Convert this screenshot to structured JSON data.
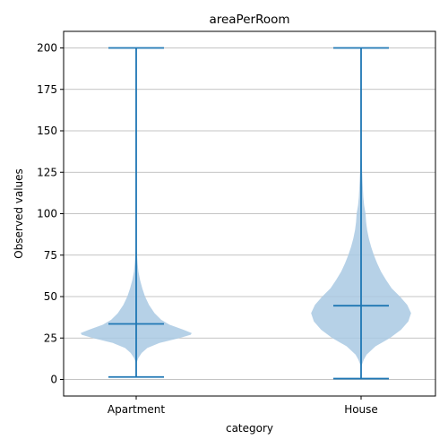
{
  "chart_data": {
    "type": "violin",
    "title": "areaPerRoom",
    "xlabel": "category",
    "ylabel": "Observed values",
    "ylim": [
      -10,
      210
    ],
    "yticks": [
      0,
      25,
      50,
      75,
      100,
      125,
      150,
      175,
      200
    ],
    "grid": "horizontal",
    "colors": {
      "body": "#a9c9e3",
      "line": "#1f77b4"
    },
    "categories": [
      "Apartment",
      "House"
    ],
    "violins": [
      {
        "name": "Apartment",
        "min": 1.5,
        "max": 200,
        "median": 33.5,
        "density": [
          [
            10,
            0.005
          ],
          [
            13,
            0.04
          ],
          [
            16,
            0.1
          ],
          [
            19,
            0.2
          ],
          [
            22,
            0.42
          ],
          [
            25,
            0.78
          ],
          [
            27,
            0.98
          ],
          [
            28,
            1.0
          ],
          [
            30,
            0.85
          ],
          [
            33,
            0.6
          ],
          [
            36,
            0.45
          ],
          [
            40,
            0.33
          ],
          [
            45,
            0.23
          ],
          [
            50,
            0.16
          ],
          [
            55,
            0.11
          ],
          [
            60,
            0.07
          ],
          [
            65,
            0.04
          ],
          [
            70,
            0.025
          ],
          [
            75,
            0.015
          ],
          [
            80,
            0.007
          ],
          [
            85,
            0.003
          ],
          [
            90,
            0.0
          ]
        ]
      },
      {
        "name": "House",
        "min": 0.5,
        "max": 200,
        "median": 44.5,
        "density": [
          [
            8,
            0.005
          ],
          [
            12,
            0.05
          ],
          [
            15,
            0.1
          ],
          [
            20,
            0.26
          ],
          [
            25,
            0.52
          ],
          [
            30,
            0.72
          ],
          [
            35,
            0.85
          ],
          [
            40,
            0.9
          ],
          [
            45,
            0.83
          ],
          [
            50,
            0.7
          ],
          [
            55,
            0.55
          ],
          [
            60,
            0.45
          ],
          [
            65,
            0.36
          ],
          [
            70,
            0.29
          ],
          [
            75,
            0.23
          ],
          [
            80,
            0.18
          ],
          [
            85,
            0.14
          ],
          [
            90,
            0.11
          ],
          [
            95,
            0.09
          ],
          [
            100,
            0.08
          ],
          [
            105,
            0.055
          ],
          [
            110,
            0.04
          ],
          [
            120,
            0.025
          ],
          [
            130,
            0.015
          ],
          [
            140,
            0.005
          ],
          [
            150,
            0.0
          ]
        ]
      }
    ]
  }
}
